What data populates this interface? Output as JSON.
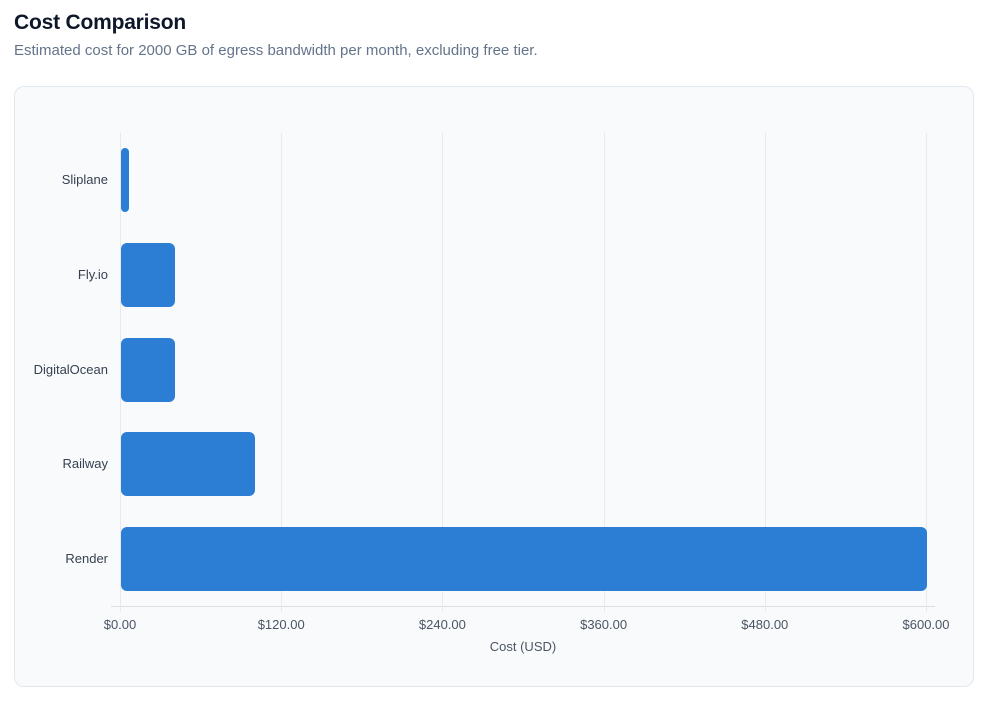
{
  "header": {
    "title": "Cost Comparison",
    "subtitle": "Estimated cost for 2000 GB of egress bandwidth per month, excluding free tier."
  },
  "chart_data": {
    "type": "bar",
    "orientation": "horizontal",
    "title": "Cost Comparison",
    "categories": [
      "Sliplane",
      "Fly.io",
      "DigitalOcean",
      "Railway",
      "Render"
    ],
    "values": [
      6,
      40,
      40,
      100,
      600
    ],
    "value_unit": "USD",
    "xlabel": "Cost (USD)",
    "ylabel": "",
    "xlim": [
      0,
      600
    ],
    "x_ticks": [
      0,
      120,
      240,
      360,
      480,
      600
    ],
    "x_tick_labels": [
      "$0.00",
      "$120.00",
      "$240.00",
      "$360.00",
      "$480.00",
      "$600.00"
    ],
    "grid": true,
    "legend": false
  },
  "colors": {
    "bar": "#2b7ed3",
    "grid": "#e7e9ee",
    "axis_line": "#dcdfe4",
    "tick_text": "#4b5563",
    "category_text": "#374151",
    "page_bg": "#ffffff",
    "card_bg": "#f8fafc",
    "card_border": "#e2e8f0",
    "title_text": "#0f172a",
    "subtitle_text": "#64748b"
  }
}
